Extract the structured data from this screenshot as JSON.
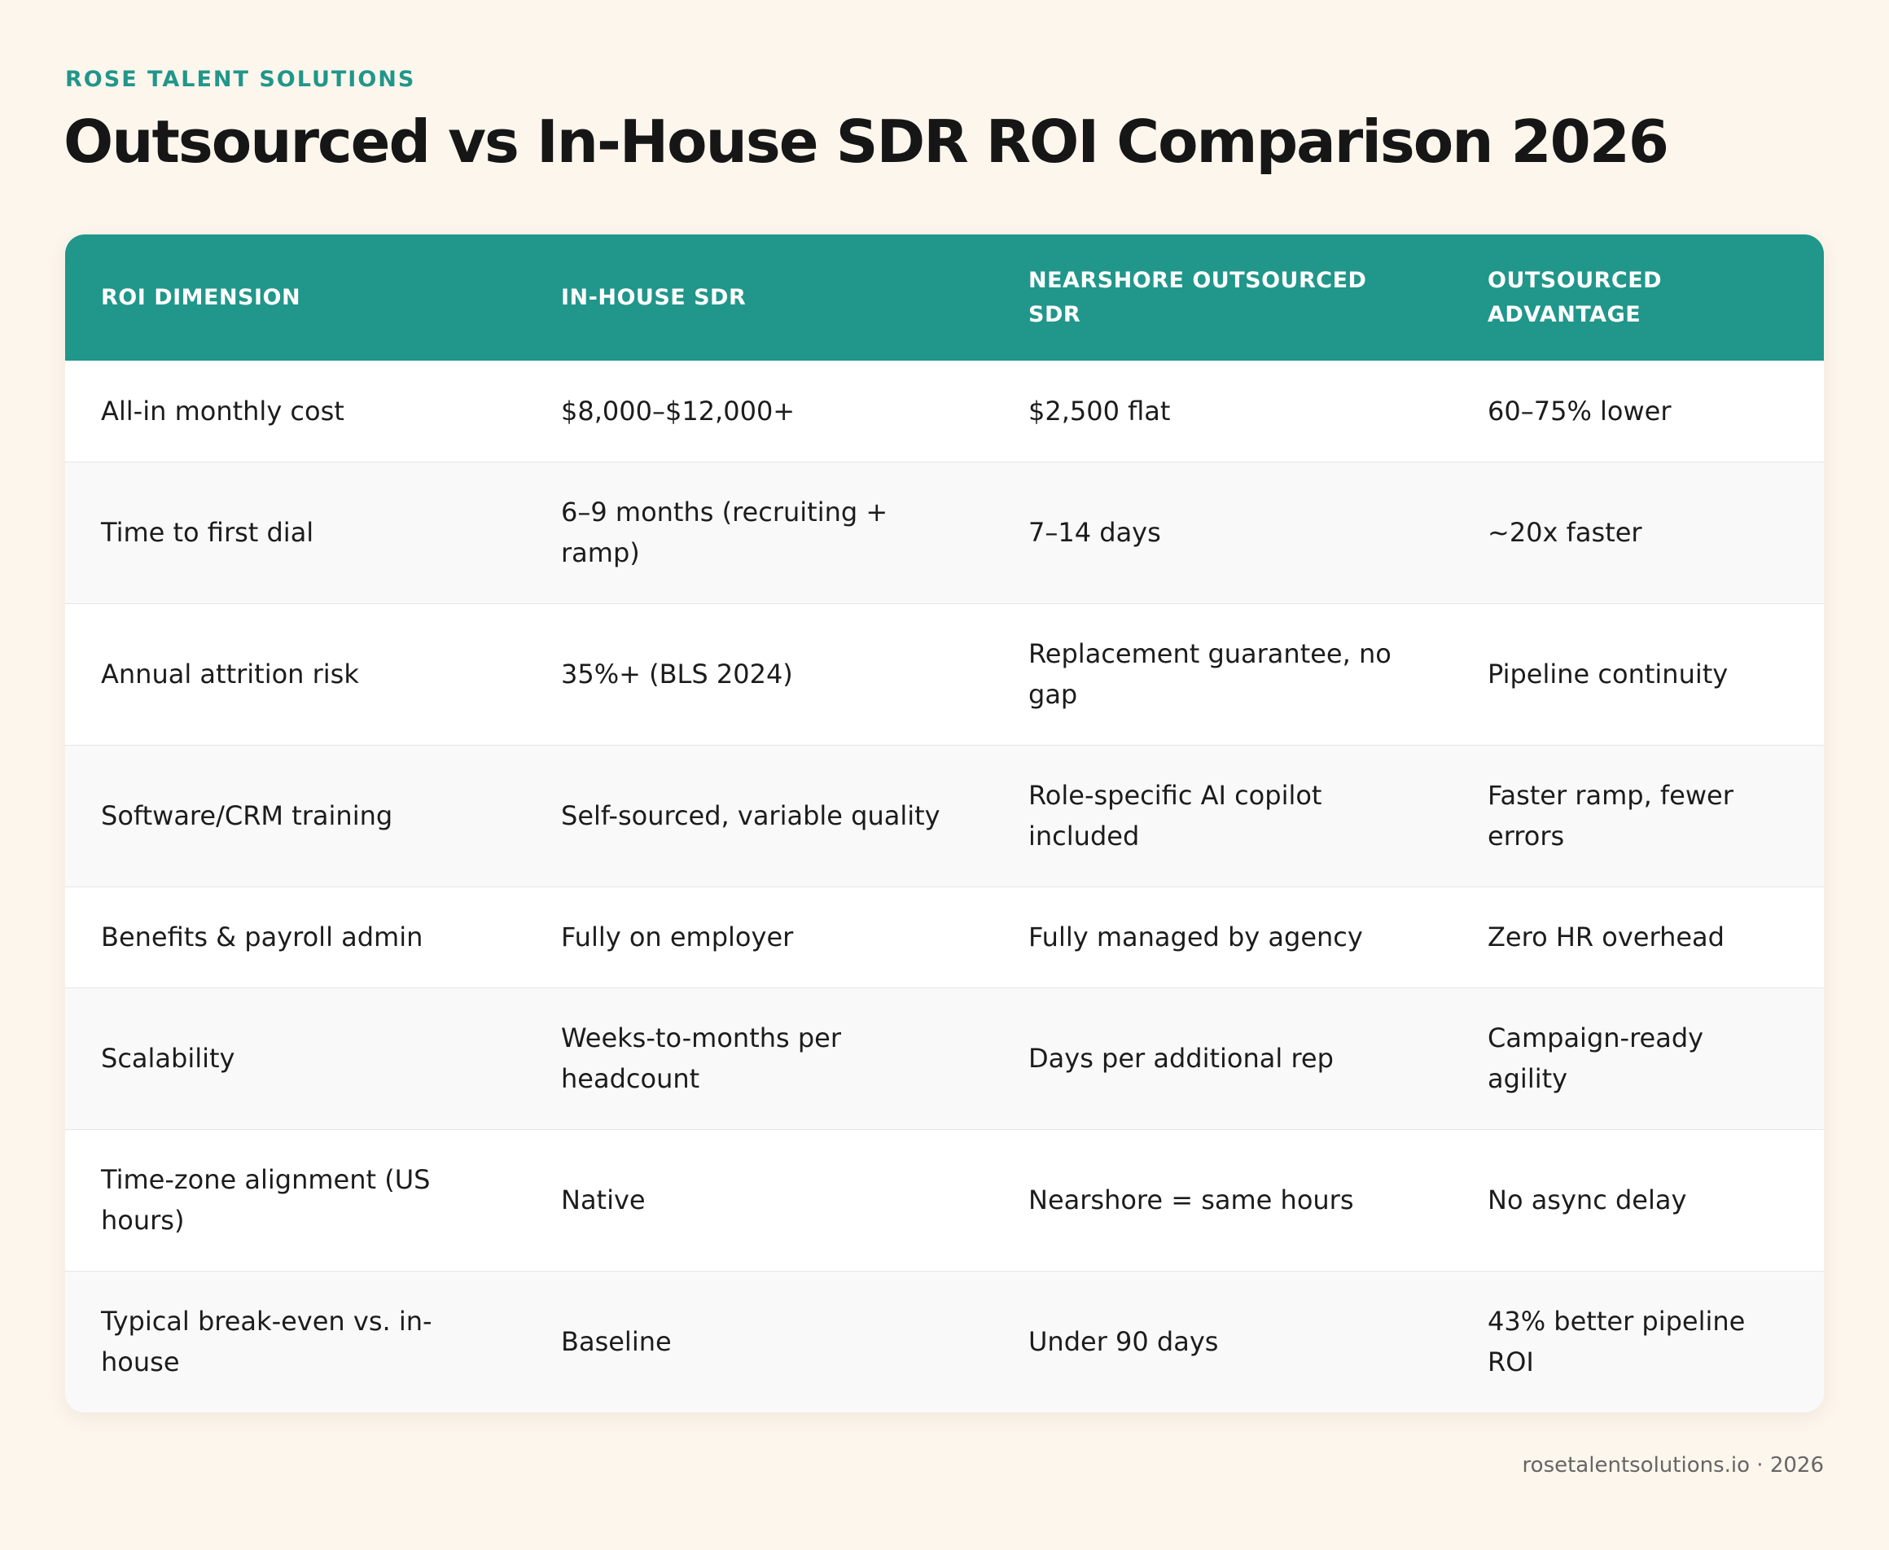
{
  "header": {
    "brand": "ROSE TALENT SOLUTIONS",
    "title": "Outsourced vs In-House SDR ROI Comparison 2026"
  },
  "table": {
    "columns": [
      "ROI DIMENSION",
      "IN-HOUSE SDR",
      "NEARSHORE OUTSOURCED SDR",
      "OUTSOURCED ADVANTAGE"
    ],
    "rows": [
      [
        "All-in monthly cost",
        "$8,000–$12,000+",
        "$2,500 flat",
        "60–75% lower"
      ],
      [
        "Time to first dial",
        "6–9 months (recruiting + ramp)",
        "7–14 days",
        "~20x faster"
      ],
      [
        "Annual attrition risk",
        "35%+ (BLS 2024)",
        "Replacement guarantee, no gap",
        "Pipeline continuity"
      ],
      [
        "Software/CRM training",
        "Self-sourced, variable quality",
        "Role-specific AI copilot included",
        "Faster ramp, fewer errors"
      ],
      [
        "Benefits & payroll admin",
        "Fully on employer",
        "Fully managed by agency",
        "Zero HR overhead"
      ],
      [
        "Scalability",
        "Weeks-to-months per headcount",
        "Days per additional rep",
        "Campaign-ready agility"
      ],
      [
        "Time-zone alignment (US hours)",
        "Native",
        "Nearshore = same hours",
        "No async delay"
      ],
      [
        "Typical break-even vs. in-house",
        "Baseline",
        "Under 90 days",
        "43% better pipeline ROI"
      ]
    ]
  },
  "footer": {
    "text": "rosetalentsolutions.io · 2026"
  },
  "colors": {
    "accent": "#21968a",
    "background": "#fdf6ed"
  }
}
